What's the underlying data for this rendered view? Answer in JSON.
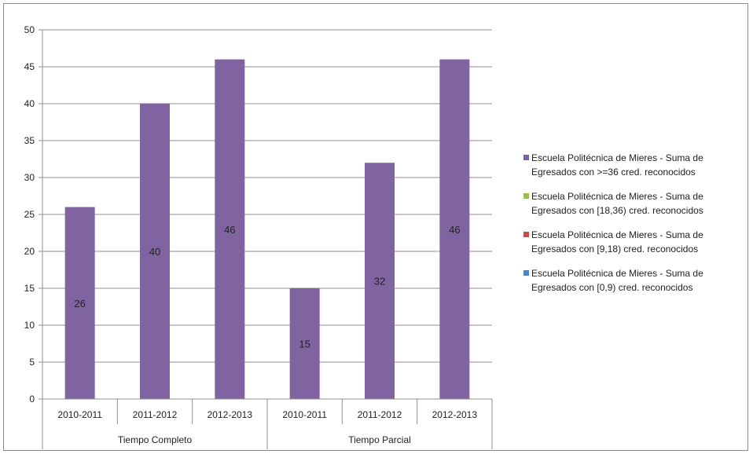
{
  "chart_data": {
    "type": "bar",
    "group_labels": [
      "Tiempo Completo",
      "Tiempo Parcial"
    ],
    "categories": [
      "2010-2011",
      "2011-2012",
      "2012-2013",
      "2010-2011",
      "2011-2012",
      "2012-2013"
    ],
    "series": [
      {
        "name": "Escuela Politécnica de Mieres - Suma de Egresados con >=36 cred. reconocidos",
        "color": "#8064a2",
        "values": [
          26,
          40,
          46,
          15,
          32,
          46
        ]
      },
      {
        "name": "Escuela Politécnica de Mieres - Suma de Egresados con [18,36) cred. reconocidos",
        "color": "#9bbb59",
        "values": [
          0,
          0,
          0,
          0,
          0,
          0
        ]
      },
      {
        "name": "Escuela Politécnica de Mieres - Suma de Egresados con [9,18) cred. reconocidos",
        "color": "#c0504d",
        "values": [
          0,
          0,
          0,
          0,
          0,
          0
        ]
      },
      {
        "name": "Escuela Politécnica de Mieres - Suma de Egresados con [0,9) cred. reconocidos",
        "color": "#4f81bd",
        "values": [
          0,
          0,
          0,
          0,
          0,
          0
        ]
      }
    ],
    "data_labels": [
      "26",
      "40",
      "46",
      "15",
      "32",
      "46"
    ],
    "y_ticks": [
      "0",
      "5",
      "10",
      "15",
      "20",
      "25",
      "30",
      "35",
      "40",
      "45",
      "50"
    ],
    "ylim": [
      0,
      50
    ],
    "grid": true,
    "legend_position": "right"
  },
  "legend": {
    "items": [
      {
        "line1": "Escuela Politécnica de Mieres - Suma de",
        "line2": "Egresados con >=36 cred. reconocidos",
        "color": "#8064a2"
      },
      {
        "line1": "Escuela Politécnica de Mieres - Suma de",
        "line2": "Egresados con [18,36) cred. reconocidos",
        "color": "#9bbb59"
      },
      {
        "line1": "Escuela Politécnica de Mieres - Suma de",
        "line2": "Egresados con [9,18) cred. reconocidos",
        "color": "#c0504d"
      },
      {
        "line1": "Escuela Politécnica de Mieres - Suma de",
        "line2": "Egresados con [0,9) cred. reconocidos",
        "color": "#4f81bd"
      }
    ]
  }
}
